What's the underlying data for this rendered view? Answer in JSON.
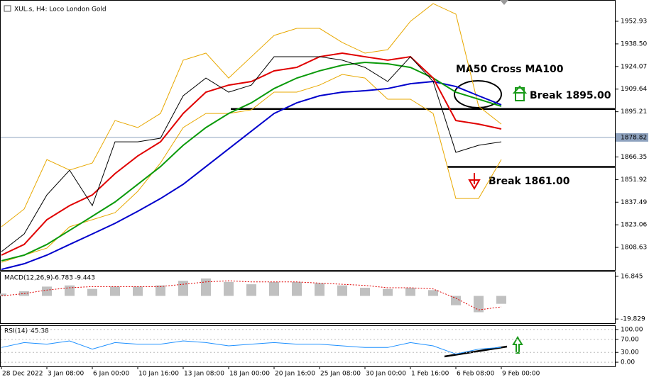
{
  "chart_data": [
    {
      "type": "line",
      "title": "XUL.s, H4:  Loco London Gold",
      "categories": [
        "28 Dec 2022",
        null,
        "3 Jan 08:00",
        null,
        "6 Jan 00:00",
        null,
        "10 Jan 16:00",
        null,
        "13 Jan 08:00",
        null,
        "18 Jan 00:00",
        null,
        "20 Jan 16:00",
        null,
        "25 Jan 08:00",
        null,
        "30 Jan 00:00",
        null,
        "1 Feb 16:00",
        null,
        "6 Feb 08:00",
        null,
        "9 Feb 00:00"
      ],
      "series": [
        {
          "color": "#e8a800",
          "values": [
            1821.8,
            1833.1,
            1864.7,
            1858.0,
            1862.5,
            1889.6,
            1885.1,
            1894.1,
            1928.1,
            1932.6,
            1916.7,
            1930.3,
            1943.9,
            1948.4,
            1948.4,
            1939.4,
            1932.6,
            1934.8,
            1952.9,
            1964.2,
            1957.5,
            1898.7,
            1887.3
          ]
        },
        {
          "color": "#e8a800",
          "values": [
            1799.1,
            1803.7,
            1808.2,
            1821.8,
            1826.3,
            1830.8,
            1844.4,
            1862.5,
            1885.1,
            1894.1,
            1894.1,
            1896.4,
            1907.7,
            1907.7,
            1912.2,
            1919.0,
            1916.7,
            1903.2,
            1903.2,
            1894.1,
            1839.8,
            1839.8,
            1864.7
          ]
        },
        {
          "color": "#0000cc",
          "values": [
            1794.6,
            1798.2,
            1803.7,
            1810.5,
            1817.2,
            1824.0,
            1831.7,
            1839.8,
            1848.9,
            1860.2,
            1871.5,
            1882.8,
            1894.1,
            1900.9,
            1905.4,
            1907.7,
            1908.6,
            1910.0,
            1913.1,
            1914.5,
            1911.3,
            1905.4,
            1899.6
          ]
        },
        {
          "color": "#0a9a0a",
          "values": [
            1800.1,
            1803.7,
            1810.5,
            1819.5,
            1828.5,
            1837.6,
            1848.9,
            1860.2,
            1873.8,
            1885.1,
            1894.1,
            1900.9,
            1910.0,
            1916.7,
            1921.3,
            1924.9,
            1926.7,
            1925.8,
            1923.5,
            1916.7,
            1907.7,
            1903.2,
            1898.7
          ]
        },
        {
          "color": "#e00000",
          "values": [
            1803.7,
            1810.5,
            1826.3,
            1835.3,
            1842.1,
            1855.7,
            1867.0,
            1876.0,
            1894.1,
            1907.7,
            1912.2,
            1914.5,
            1921.3,
            1923.5,
            1930.3,
            1932.6,
            1930.3,
            1928.1,
            1930.3,
            1916.7,
            1889.6,
            1887.3,
            1884.2
          ]
        },
        {
          "color": "#000000",
          "values": [
            1805.9,
            1817.2,
            1842.1,
            1857.9,
            1835.3,
            1876.0,
            1876.0,
            1878.3,
            1905.4,
            1916.7,
            1907.7,
            1912.2,
            1930.3,
            1930.3,
            1930.3,
            1928.1,
            1923.5,
            1914.5,
            1930.3,
            1914.5,
            1869.3,
            1873.8,
            1876.0
          ]
        }
      ],
      "ylim": [
        1794.2,
        1965.6
      ],
      "yticks": [
        1952.93,
        {
          "value": 1938.5,
          "label": "1938.50"
        },
        1924.07,
        1909.64,
        1895.21,
        1866.35,
        1851.92,
        1837.49,
        1823.06,
        1808.63
      ],
      "last_price": 1878.82,
      "levels": [
        1897,
        1860
      ],
      "annotations": [
        "MA50 Cross MA100",
        "Break 1895.00",
        "Break 1861.00"
      ]
    },
    {
      "type": "bar",
      "title": "MACD(12,26,9)",
      "series": [
        {
          "color": "#c0c0c0",
          "values": [
            2,
            4,
            8,
            9,
            6,
            8,
            8,
            9,
            13,
            15,
            12,
            10,
            12,
            12,
            11,
            9,
            7,
            6,
            7,
            5,
            -8,
            -14,
            -6.783
          ]
        },
        {
          "color": "#e00000",
          "values": [
            0,
            2,
            5,
            7,
            8,
            8,
            8,
            8,
            10,
            12,
            13,
            12,
            12,
            12,
            11,
            10,
            9,
            7,
            7,
            6,
            -2,
            -12,
            -9.443
          ]
        }
      ],
      "ylim": [
        -23.4,
        20.4
      ],
      "yticks": [
        16.845,
        -19.829
      ]
    },
    {
      "type": "line",
      "title": "RSI(14)",
      "series": [
        {
          "color": "#1e90ff",
          "values": [
            45,
            60,
            55,
            65,
            40,
            60,
            55,
            55,
            65,
            60,
            50,
            55,
            60,
            55,
            55,
            50,
            45,
            45,
            60,
            50,
            25,
            40,
            45.38
          ]
        }
      ],
      "ylim": [
        -12.8,
        110.6
      ],
      "yticks": [
        {
          "value": 100,
          "label": "100.00"
        },
        {
          "value": 70,
          "label": "70.00"
        },
        {
          "value": 30,
          "label": "30.00"
        },
        {
          "value": 0,
          "label": "0.00"
        }
      ]
    }
  ]
}
